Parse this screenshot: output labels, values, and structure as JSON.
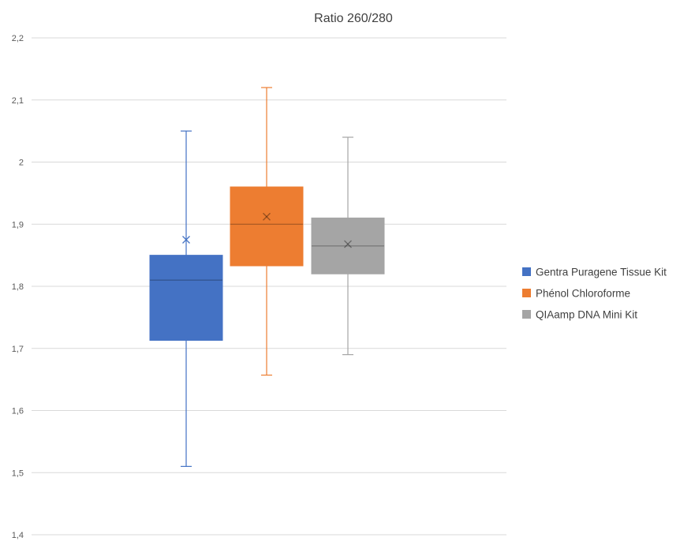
{
  "chart_data": {
    "type": "box",
    "title": "Ratio 260/280",
    "xlabel": "",
    "ylabel": "",
    "ylim": [
      1.4,
      2.2
    ],
    "yticks": [
      "1,4",
      "1,5",
      "1,6",
      "1,7",
      "1,8",
      "1,9",
      "2",
      "2,1",
      "2,2"
    ],
    "ytick_values": [
      1.4,
      1.5,
      1.6,
      1.7,
      1.8,
      1.9,
      2.0,
      2.1,
      2.2
    ],
    "grid": true,
    "legend_position": "right",
    "series": [
      {
        "name": "Gentra Puragene Tissue Kit",
        "color": "#4472C4",
        "min": 1.51,
        "q1": 1.713,
        "median": 1.81,
        "q3": 1.85,
        "max": 2.05,
        "mean": 1.875
      },
      {
        "name": "Phénol Chloroforme",
        "color": "#ED7D31",
        "min": 1.657,
        "q1": 1.833,
        "median": 1.9,
        "q3": 1.96,
        "max": 2.12,
        "mean": 1.912
      },
      {
        "name": "QIAamp DNA Mini Kit",
        "color": "#A5A5A5",
        "min": 1.69,
        "q1": 1.82,
        "median": 1.865,
        "q3": 1.91,
        "max": 2.04,
        "mean": 1.868
      }
    ]
  }
}
